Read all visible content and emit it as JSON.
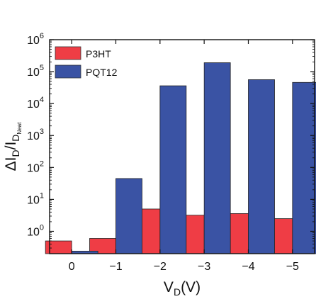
{
  "chart_data": {
    "type": "bar",
    "yscale": "log",
    "ylim": [
      0.2,
      1000000
    ],
    "yticks": [
      {
        "value": 1,
        "base": "10",
        "exp": "0"
      },
      {
        "value": 10,
        "base": "10",
        "exp": "1"
      },
      {
        "value": 100,
        "base": "10",
        "exp": "2"
      },
      {
        "value": 1000,
        "base": "10",
        "exp": "3"
      },
      {
        "value": 10000,
        "base": "10",
        "exp": "4"
      },
      {
        "value": 100000,
        "base": "10",
        "exp": "5"
      },
      {
        "value": 1000000,
        "base": "10",
        "exp": "6"
      }
    ],
    "categories": [
      "0",
      "−1",
      "−2",
      "−3",
      "−4",
      "−5"
    ],
    "xlabel": {
      "main": "V",
      "sub": "D",
      "rest": "(V)"
    },
    "ylabel": {
      "delta": "ΔI",
      "sub1": "D",
      "slash": "/I",
      "sub2": "D",
      "subsub": "Neat"
    },
    "legend_position": "top-left",
    "series": [
      {
        "name": "P3HT",
        "color": "#EF3D45",
        "values": [
          0.5,
          0.6,
          5,
          3.2,
          3.6,
          2.5
        ]
      },
      {
        "name": "PQT12",
        "color": "#3A53A4",
        "values": [
          0.24,
          45,
          36000,
          190000,
          56000,
          46000
        ]
      }
    ]
  }
}
